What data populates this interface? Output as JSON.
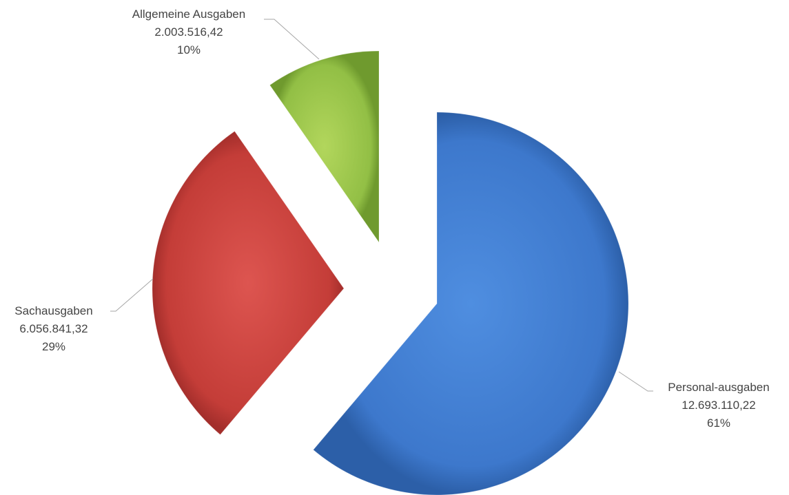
{
  "chart_data": {
    "type": "pie",
    "exploded": true,
    "title": "",
    "slices": [
      {
        "label": "Personal-ausgaben",
        "value_text": "12.693.110,22",
        "value": 12693110.22,
        "percent_text": "61%",
        "color": "#3f7bd0"
      },
      {
        "label": "Sachausgaben",
        "value_text": "6.056.841,32",
        "value": 6056841.32,
        "percent_text": "29%",
        "color": "#c9403b"
      },
      {
        "label": "Allgemeine Ausgaben",
        "value_text": "2.003.516,42",
        "value": 2003516.42,
        "percent_text": "10%",
        "color": "#8dbb3c"
      }
    ]
  }
}
